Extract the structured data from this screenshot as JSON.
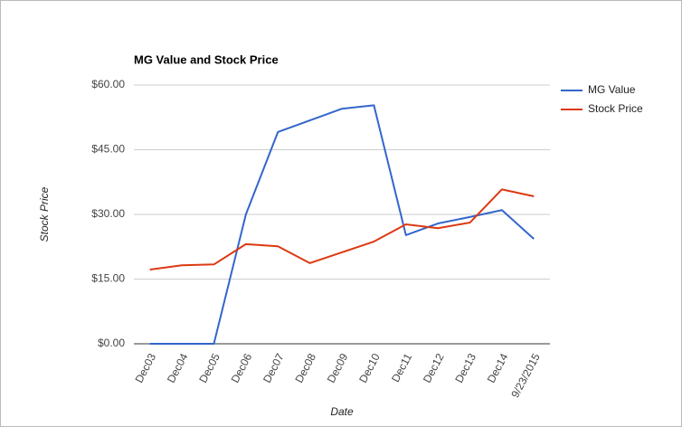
{
  "chart_data": {
    "type": "line",
    "title": "MG Value and Stock Price",
    "x_label": "Date",
    "y_label": "Stock Price",
    "categories": [
      "Dec03",
      "Dec04",
      "Dec05",
      "Dec06",
      "Dec07",
      "Dec08",
      "Dec09",
      "Dec10",
      "Dec11",
      "Dec12",
      "Dec13",
      "Dec14",
      "9/23/2015"
    ],
    "series": [
      {
        "name": "MG Value",
        "color": "#3366cc",
        "values": [
          0,
          0,
          0,
          30,
          49.1,
          51.8,
          54.5,
          55.3,
          25.2,
          27.9,
          29.4,
          31.0,
          24.3
        ]
      },
      {
        "name": "Stock Price",
        "color": "#dc3912",
        "values": [
          17.2,
          18.2,
          18.4,
          23.1,
          22.6,
          18.7,
          21.2,
          23.7,
          27.7,
          26.8,
          28.1,
          35.8,
          34.2
        ]
      }
    ],
    "ylim": [
      0,
      60
    ],
    "yticks": [
      {
        "value": 0,
        "label": "$0.00"
      },
      {
        "value": 15,
        "label": "$15.00"
      },
      {
        "value": 30,
        "label": "$30.00"
      },
      {
        "value": 45,
        "label": "$45.00"
      },
      {
        "value": 60,
        "label": "$60.00"
      }
    ],
    "grid": true,
    "legend": "right"
  }
}
